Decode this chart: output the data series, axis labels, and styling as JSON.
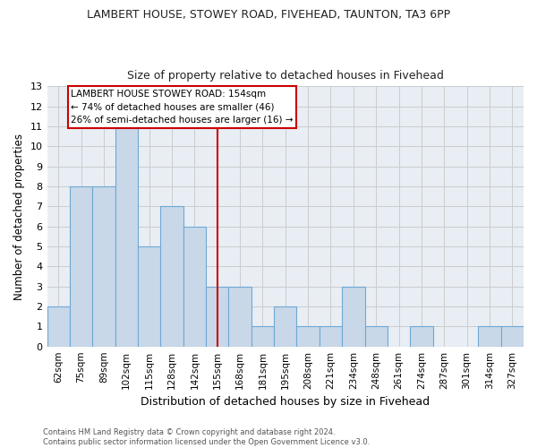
{
  "title1": "LAMBERT HOUSE, STOWEY ROAD, FIVEHEAD, TAUNTON, TA3 6PP",
  "title2": "Size of property relative to detached houses in Fivehead",
  "xlabel": "Distribution of detached houses by size in Fivehead",
  "ylabel": "Number of detached properties",
  "categories": [
    "62sqm",
    "75sqm",
    "89sqm",
    "102sqm",
    "115sqm",
    "128sqm",
    "142sqm",
    "155sqm",
    "168sqm",
    "181sqm",
    "195sqm",
    "208sqm",
    "221sqm",
    "234sqm",
    "248sqm",
    "261sqm",
    "274sqm",
    "287sqm",
    "301sqm",
    "314sqm",
    "327sqm"
  ],
  "values": [
    2,
    8,
    8,
    11,
    5,
    7,
    6,
    3,
    3,
    1,
    2,
    1,
    1,
    3,
    1,
    0,
    1,
    0,
    0,
    1,
    1
  ],
  "bar_color": "#c8d8e8",
  "bar_edge_color": "#6fa8d4",
  "highlight_x": "155sqm",
  "highlight_line_color": "#cc0000",
  "ylim": [
    0,
    13
  ],
  "yticks": [
    0,
    1,
    2,
    3,
    4,
    5,
    6,
    7,
    8,
    9,
    10,
    11,
    12,
    13
  ],
  "annotation_title": "LAMBERT HOUSE STOWEY ROAD: 154sqm",
  "annotation_line1": "← 74% of detached houses are smaller (46)",
  "annotation_line2": "26% of semi-detached houses are larger (16) →",
  "annotation_box_color": "#ffffff",
  "annotation_box_edge_color": "#cc0000",
  "footer_line1": "Contains HM Land Registry data © Crown copyright and database right 2024.",
  "footer_line2": "Contains public sector information licensed under the Open Government Licence v3.0.",
  "grid_color": "#cccccc",
  "background_color": "#e8eef4"
}
